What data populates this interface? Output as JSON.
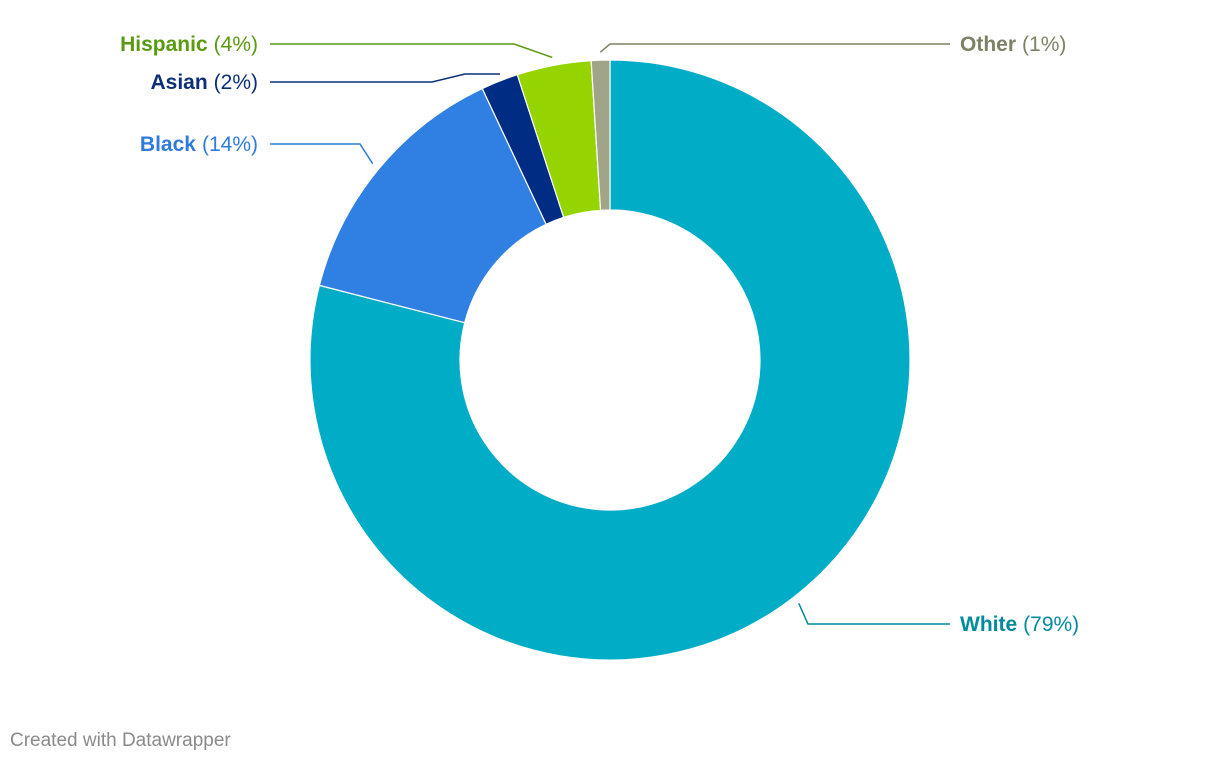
{
  "chart_data": {
    "type": "pie",
    "variant": "donut",
    "categories": [
      "White",
      "Black",
      "Asian",
      "Hispanic",
      "Other"
    ],
    "values": [
      79,
      14,
      2,
      4,
      1
    ],
    "value_labels": [
      "(79%)",
      "(14%)",
      "(2%)",
      "(4%)",
      "(1%)"
    ],
    "colors": [
      "#00acc6",
      "#3080e3",
      "#002c84",
      "#96d400",
      "#a0a58a"
    ],
    "label_colors": [
      "#008a9e",
      "#2f7bd9",
      "#0d2f78",
      "#5a9a10",
      "#7d8266"
    ],
    "title": "",
    "legend": "none"
  },
  "footer": {
    "credit": "Created with Datawrapper"
  }
}
